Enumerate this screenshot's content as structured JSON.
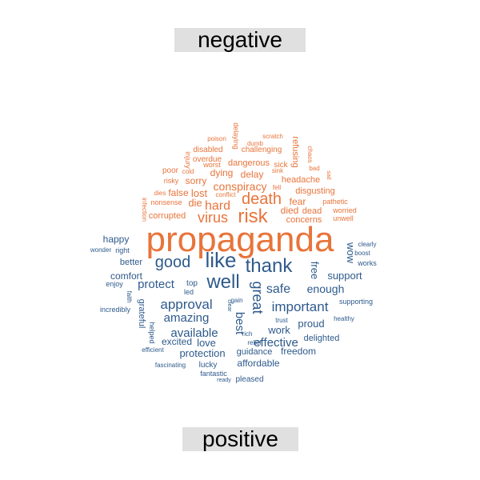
{
  "labels": {
    "top": "negative",
    "bottom": "positive"
  },
  "colors": {
    "negative": "#E8743B",
    "positive": "#2E5A8C",
    "label_bg": "#E0E0E0"
  },
  "chart_data": {
    "type": "comparison_wordcloud",
    "groups": [
      "negative",
      "positive"
    ],
    "words": [
      {
        "text": "propaganda",
        "group": "negative",
        "weight": 10
      },
      {
        "text": "risk",
        "group": "negative",
        "weight": 4.5
      },
      {
        "text": "death",
        "group": "negative",
        "weight": 4.0
      },
      {
        "text": "virus",
        "group": "negative",
        "weight": 3.6
      },
      {
        "text": "hard",
        "group": "negative",
        "weight": 3.2
      },
      {
        "text": "conspiracy",
        "group": "negative",
        "weight": 2.9
      },
      {
        "text": "fear",
        "group": "negative",
        "weight": 2.7
      },
      {
        "text": "died",
        "group": "negative",
        "weight": 2.6
      },
      {
        "text": "concerns",
        "group": "negative",
        "weight": 2.5
      },
      {
        "text": "corrupted",
        "group": "negative",
        "weight": 2.5
      },
      {
        "text": "die",
        "group": "negative",
        "weight": 2.7
      },
      {
        "text": "lost",
        "group": "negative",
        "weight": 2.6
      },
      {
        "text": "false",
        "group": "negative",
        "weight": 2.5
      },
      {
        "text": "sorry",
        "group": "negative",
        "weight": 2.5
      },
      {
        "text": "dying",
        "group": "negative",
        "weight": 2.5
      },
      {
        "text": "delay",
        "group": "negative",
        "weight": 2.5
      },
      {
        "text": "dangerous",
        "group": "negative",
        "weight": 2.3
      },
      {
        "text": "headache",
        "group": "negative",
        "weight": 2.3
      },
      {
        "text": "disgusting",
        "group": "negative",
        "weight": 2.3
      },
      {
        "text": "dead",
        "group": "negative",
        "weight": 2.3
      },
      {
        "text": "challenging",
        "group": "negative",
        "weight": 2.1
      },
      {
        "text": "disabled",
        "group": "negative",
        "weight": 2.0
      },
      {
        "text": "overdue",
        "group": "negative",
        "weight": 2.0
      },
      {
        "text": "worst",
        "group": "negative",
        "weight": 1.9
      },
      {
        "text": "sick",
        "group": "negative",
        "weight": 1.9
      },
      {
        "text": "refusing",
        "group": "negative",
        "weight": 1.9
      },
      {
        "text": "poor",
        "group": "negative",
        "weight": 1.9
      },
      {
        "text": "risky",
        "group": "negative",
        "weight": 1.8
      },
      {
        "text": "nonsense",
        "group": "negative",
        "weight": 1.8
      },
      {
        "text": "pathetic",
        "group": "negative",
        "weight": 1.8
      },
      {
        "text": "worried",
        "group": "negative",
        "weight": 1.7
      },
      {
        "text": "unwell",
        "group": "negative",
        "weight": 1.7
      },
      {
        "text": "poison",
        "group": "negative",
        "weight": 1.5
      },
      {
        "text": "delaying",
        "group": "negative",
        "weight": 1.5
      },
      {
        "text": "scratch",
        "group": "negative",
        "weight": 1.5
      },
      {
        "text": "dumb",
        "group": "negative",
        "weight": 1.5
      },
      {
        "text": "injury",
        "group": "negative",
        "weight": 1.5
      },
      {
        "text": "chaos",
        "group": "negative",
        "weight": 1.4
      },
      {
        "text": "bad",
        "group": "negative",
        "weight": 1.5
      },
      {
        "text": "sad",
        "group": "negative",
        "weight": 1.4
      },
      {
        "text": "sink",
        "group": "negative",
        "weight": 1.4
      },
      {
        "text": "cold",
        "group": "negative",
        "weight": 1.4
      },
      {
        "text": "fell",
        "group": "negative",
        "weight": 1.4
      },
      {
        "text": "dies",
        "group": "negative",
        "weight": 1.4
      },
      {
        "text": "conflict",
        "group": "negative",
        "weight": 1.4
      },
      {
        "text": "infection",
        "group": "negative",
        "weight": 1.4
      },
      {
        "text": "like",
        "group": "positive",
        "weight": 5.5
      },
      {
        "text": "thank",
        "group": "positive",
        "weight": 5.0
      },
      {
        "text": "well",
        "group": "positive",
        "weight": 5.0
      },
      {
        "text": "good",
        "group": "positive",
        "weight": 4.5
      },
      {
        "text": "great",
        "group": "positive",
        "weight": 4.0
      },
      {
        "text": "approval",
        "group": "positive",
        "weight": 3.4
      },
      {
        "text": "important",
        "group": "positive",
        "weight": 3.4
      },
      {
        "text": "protect",
        "group": "positive",
        "weight": 3.2
      },
      {
        "text": "safe",
        "group": "positive",
        "weight": 3.2
      },
      {
        "text": "amazing",
        "group": "positive",
        "weight": 3.1
      },
      {
        "text": "available",
        "group": "positive",
        "weight": 3.1
      },
      {
        "text": "best",
        "group": "positive",
        "weight": 3.1
      },
      {
        "text": "effective",
        "group": "positive",
        "weight": 3.1
      },
      {
        "text": "enough",
        "group": "positive",
        "weight": 2.9
      },
      {
        "text": "support",
        "group": "positive",
        "weight": 2.8
      },
      {
        "text": "work",
        "group": "positive",
        "weight": 2.8
      },
      {
        "text": "protection",
        "group": "positive",
        "weight": 2.7
      },
      {
        "text": "love",
        "group": "positive",
        "weight": 2.6
      },
      {
        "text": "proud",
        "group": "positive",
        "weight": 2.6
      },
      {
        "text": "free",
        "group": "positive",
        "weight": 2.6
      },
      {
        "text": "wow",
        "group": "positive",
        "weight": 2.5
      },
      {
        "text": "comfort",
        "group": "positive",
        "weight": 2.4
      },
      {
        "text": "happy",
        "group": "positive",
        "weight": 2.4
      },
      {
        "text": "better",
        "group": "positive",
        "weight": 2.3
      },
      {
        "text": "affordable",
        "group": "positive",
        "weight": 2.3
      },
      {
        "text": "freedom",
        "group": "positive",
        "weight": 2.3
      },
      {
        "text": "excited",
        "group": "positive",
        "weight": 2.3
      },
      {
        "text": "grateful",
        "group": "positive",
        "weight": 2.3
      },
      {
        "text": "guidance",
        "group": "positive",
        "weight": 2.1
      },
      {
        "text": "delighted",
        "group": "positive",
        "weight": 2.1
      },
      {
        "text": "lucky",
        "group": "positive",
        "weight": 2.1
      },
      {
        "text": "pleased",
        "group": "positive",
        "weight": 1.9
      },
      {
        "text": "helped",
        "group": "positive",
        "weight": 1.8
      },
      {
        "text": "right",
        "group": "positive",
        "weight": 1.8
      },
      {
        "text": "fantastic",
        "group": "positive",
        "weight": 1.7
      },
      {
        "text": "top",
        "group": "positive",
        "weight": 1.8
      },
      {
        "text": "led",
        "group": "positive",
        "weight": 1.7
      },
      {
        "text": "incredibly",
        "group": "positive",
        "weight": 1.7
      },
      {
        "text": "supporting",
        "group": "positive",
        "weight": 1.7
      },
      {
        "text": "works",
        "group": "positive",
        "weight": 1.7
      },
      {
        "text": "clearly",
        "group": "positive",
        "weight": 1.6
      },
      {
        "text": "boost",
        "group": "positive",
        "weight": 1.6
      },
      {
        "text": "wonder",
        "group": "positive",
        "weight": 1.5
      },
      {
        "text": "enjoy",
        "group": "positive",
        "weight": 1.6
      },
      {
        "text": "faith",
        "group": "positive",
        "weight": 1.5
      },
      {
        "text": "healthy",
        "group": "positive",
        "weight": 1.5
      },
      {
        "text": "efficient",
        "group": "positive",
        "weight": 1.5
      },
      {
        "text": "fascinating",
        "group": "positive",
        "weight": 1.5
      },
      {
        "text": "trust",
        "group": "positive",
        "weight": 1.4
      },
      {
        "text": "relief",
        "group": "positive",
        "weight": 1.4
      },
      {
        "text": "rich",
        "group": "positive",
        "weight": 1.4
      },
      {
        "text": "gain",
        "group": "positive",
        "weight": 1.4
      },
      {
        "text": "clear",
        "group": "positive",
        "weight": 1.4
      },
      {
        "text": "ready",
        "group": "positive",
        "weight": 1.4
      }
    ]
  }
}
